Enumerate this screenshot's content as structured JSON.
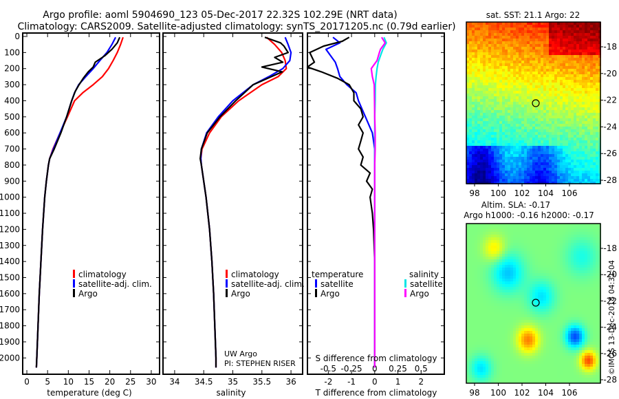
{
  "title_line1": "Argo profile: aoml 5904690_123 05-Dec-2017 22.32S 102.29E (NRT data)",
  "title_line2": "Climatology: CARS2009. Satellite-adjusted climatology: synTS_20171205.nc (0.79d earlier)",
  "colors": {
    "climatology": "#ff0000",
    "satellite": "#0000ff",
    "argo": "#000000",
    "sat_salinity": "#00e5e5",
    "argo_salinity": "#ff00ff"
  },
  "chart_data": [
    {
      "type": "line",
      "name": "temperature-panel",
      "xlabel": "temperature (deg C)",
      "xlim": [
        -1,
        32
      ],
      "ylim": [
        0,
        2080
      ],
      "xticks": [
        0,
        5,
        10,
        15,
        20,
        25,
        30
      ],
      "yticks": [
        0,
        100,
        200,
        300,
        400,
        500,
        600,
        700,
        800,
        900,
        1000,
        1100,
        1200,
        1300,
        1400,
        1500,
        1600,
        1700,
        1800,
        1900,
        2000
      ],
      "legend": [
        "climatology",
        "satellite-adj. clim.",
        "Argo"
      ],
      "series": [
        {
          "name": "climatology",
          "depth": [
            5,
            50,
            100,
            150,
            200,
            250,
            300,
            350,
            400,
            500,
            600,
            700,
            760,
            800,
            900,
            1000,
            1200,
            1400,
            1600,
            1800,
            2000,
            2060
          ],
          "values": [
            23.2,
            22.6,
            21.8,
            20.8,
            19.7,
            18.2,
            16.0,
            13.5,
            11.5,
            9.8,
            8.0,
            6.3,
            5.5,
            5.2,
            4.7,
            4.3,
            3.8,
            3.4,
            3.0,
            2.7,
            2.4,
            2.3
          ]
        },
        {
          "name": "satellite-adj. clim.",
          "depth": [
            5,
            50,
            100,
            150,
            200,
            250,
            300,
            350,
            400,
            500,
            600,
            700,
            760,
            800,
            900,
            1000,
            1200,
            1400,
            1600,
            1800,
            2000,
            2060
          ],
          "values": [
            21.4,
            20.5,
            19.3,
            17.6,
            16.0,
            14.2,
            12.5,
            11.5,
            10.8,
            9.6,
            8.0,
            6.4,
            5.5,
            5.2,
            4.7,
            4.3,
            3.8,
            3.4,
            3.0,
            2.7,
            2.4,
            2.3
          ]
        },
        {
          "name": "Argo",
          "depth": [
            5,
            40,
            80,
            120,
            160,
            190,
            220,
            260,
            300,
            340,
            400,
            500,
            600,
            700,
            760,
            800,
            900,
            1000,
            1200,
            1400,
            1600,
            1800,
            2000,
            2060
          ],
          "values": [
            22.4,
            21.8,
            20.5,
            18.8,
            16.5,
            16.0,
            14.8,
            13.6,
            12.6,
            11.7,
            10.8,
            9.6,
            8.2,
            6.6,
            5.5,
            5.2,
            4.7,
            4.3,
            3.8,
            3.4,
            3.0,
            2.7,
            2.4,
            2.3
          ]
        }
      ]
    },
    {
      "type": "line",
      "name": "salinity-panel",
      "xlabel": "salinity",
      "xlim": [
        33.8,
        36.2
      ],
      "ylim": [
        0,
        2080
      ],
      "xticks": [
        34,
        34.5,
        35,
        35.5,
        36
      ],
      "legend": [
        "climatology",
        "satellite-adj. clim.",
        "Argo"
      ],
      "series": [
        {
          "name": "climatology",
          "depth": [
            5,
            50,
            100,
            150,
            200,
            250,
            300,
            400,
            500,
            600,
            700,
            760,
            800,
            900,
            1000,
            1200,
            1400,
            1600,
            1800,
            2000,
            2060
          ],
          "values": [
            35.58,
            35.72,
            35.84,
            35.9,
            35.92,
            35.78,
            35.5,
            35.1,
            34.8,
            34.6,
            34.47,
            34.45,
            34.46,
            34.5,
            34.54,
            34.6,
            34.64,
            34.67,
            34.69,
            34.71,
            34.71
          ]
        },
        {
          "name": "satellite-adj. clim.",
          "depth": [
            5,
            50,
            100,
            150,
            200,
            250,
            300,
            400,
            500,
            600,
            700,
            760,
            800,
            900,
            1000,
            1200,
            1400,
            1600,
            1800,
            2000,
            2060
          ],
          "values": [
            35.9,
            35.95,
            36.0,
            35.98,
            35.86,
            35.62,
            35.35,
            35.0,
            34.75,
            34.55,
            34.46,
            34.45,
            34.46,
            34.5,
            34.54,
            34.6,
            34.64,
            34.67,
            34.69,
            34.71,
            34.71
          ]
        },
        {
          "name": "Argo",
          "depth": [
            5,
            40,
            60,
            100,
            130,
            160,
            190,
            220,
            260,
            300,
            400,
            500,
            600,
            700,
            760,
            800,
            900,
            1000,
            1200,
            1400,
            1600,
            1800,
            2000,
            2060
          ],
          "values": [
            35.55,
            35.82,
            35.88,
            35.95,
            35.72,
            35.86,
            35.5,
            35.85,
            35.6,
            35.35,
            35.05,
            34.78,
            34.56,
            34.46,
            34.44,
            34.46,
            34.5,
            34.54,
            34.6,
            34.64,
            34.67,
            34.69,
            34.71,
            34.71
          ]
        }
      ],
      "annotations": [
        "UW Argo",
        "PI: STEPHEN RISER"
      ]
    },
    {
      "type": "line",
      "name": "difference-panel",
      "xlabel": "T difference from climatology",
      "xlabel_top": "S difference from climatology",
      "xlim": [
        -2.9,
        3.0
      ],
      "ylim": [
        0,
        2080
      ],
      "xticks": [
        -2,
        -1,
        0,
        1,
        2
      ],
      "xticks_top_labels": [
        "-0.5",
        "-0.25",
        "0",
        "0.25",
        "0.5"
      ],
      "legend_left_title": "temperature",
      "legend_right_title": "salinity",
      "legend_left": [
        "satellite",
        "Argo"
      ],
      "legend_right": [
        "satellite",
        "Argo"
      ],
      "series": [
        {
          "name": "T satellite",
          "depth": [
            5,
            40,
            80,
            120,
            160,
            200,
            250,
            300,
            350,
            400,
            500,
            600,
            700,
            800,
            900,
            1000,
            1200,
            1400,
            1600,
            1800,
            2000,
            2060
          ],
          "values": [
            -1.8,
            -1.5,
            -2.1,
            -1.9,
            -1.7,
            -1.6,
            -1.5,
            -1.2,
            -0.8,
            -0.7,
            -0.4,
            -0.1,
            0.0,
            0.0,
            0.0,
            0.0,
            0.0,
            0.0,
            0.0,
            0.0,
            0.0,
            0.0
          ]
        },
        {
          "name": "T Argo",
          "depth": [
            5,
            30,
            60,
            100,
            130,
            160,
            190,
            220,
            260,
            300,
            350,
            400,
            450,
            500,
            550,
            600,
            650,
            700,
            750,
            800,
            850,
            900,
            950,
            1000,
            1100,
            1200,
            1400,
            1600,
            1800,
            2000,
            2060
          ],
          "values": [
            -1.1,
            -1.4,
            -2.2,
            -2.8,
            -2.7,
            -2.6,
            -2.9,
            -2.3,
            -1.6,
            -1.1,
            -0.9,
            -0.9,
            -0.6,
            -0.5,
            -0.7,
            -0.5,
            -0.6,
            -0.7,
            -0.5,
            -0.6,
            -0.2,
            -0.35,
            -0.1,
            -0.2,
            -0.1,
            -0.05,
            0.0,
            0.0,
            0.0,
            0.0,
            0.0
          ]
        },
        {
          "name": "S satellite",
          "depth": [
            5,
            40,
            80,
            120,
            160,
            200,
            250,
            300,
            400,
            500,
            600,
            700,
            800,
            900,
            1000,
            1200,
            1400,
            1600,
            1800,
            2000,
            2060
          ],
          "values": [
            0.4,
            0.5,
            0.35,
            0.25,
            0.15,
            0.1,
            0.06,
            0.03,
            0.02,
            0.0,
            0.0,
            0.005,
            0.0,
            0.0,
            0.0,
            0.0,
            0.0,
            0.0,
            0.0,
            0.0,
            0.0
          ]
        },
        {
          "name": "S Argo",
          "depth": [
            5,
            40,
            80,
            100,
            150,
            200,
            250,
            300,
            400,
            500,
            600,
            700,
            800,
            900,
            1000,
            1200,
            1400,
            1600,
            1800,
            2000,
            2060
          ],
          "values": [
            0.3,
            0.45,
            0.25,
            0.2,
            0.1,
            -0.15,
            -0.1,
            -0.02,
            -0.01,
            0.0,
            0.02,
            0.02,
            0.0,
            0.0,
            0.0,
            0.0,
            0.0,
            0.0,
            0.0,
            0.0,
            0.0
          ]
        }
      ]
    },
    {
      "type": "heatmap",
      "name": "sst-map",
      "title": "sat. SST: 21.1 Argo: 22",
      "xticks": [
        "98",
        "100",
        "102",
        "104",
        "106"
      ],
      "yticks": [
        "-18",
        "-20",
        "-22",
        "-24",
        "-26",
        "-28"
      ]
    },
    {
      "type": "heatmap",
      "name": "sla-map",
      "title_line1": "Altim. SLA: -0.17",
      "title_line2": "Argo h1000: -0.16 h2000: -0.17",
      "xticks": [
        "98",
        "100",
        "102",
        "104",
        "106"
      ],
      "yticks": [
        "-18",
        "-20",
        "-22",
        "-24",
        "-26",
        "-28"
      ]
    }
  ],
  "footer_credit": "©IMOS 13-Dec-2018 04:31:04"
}
